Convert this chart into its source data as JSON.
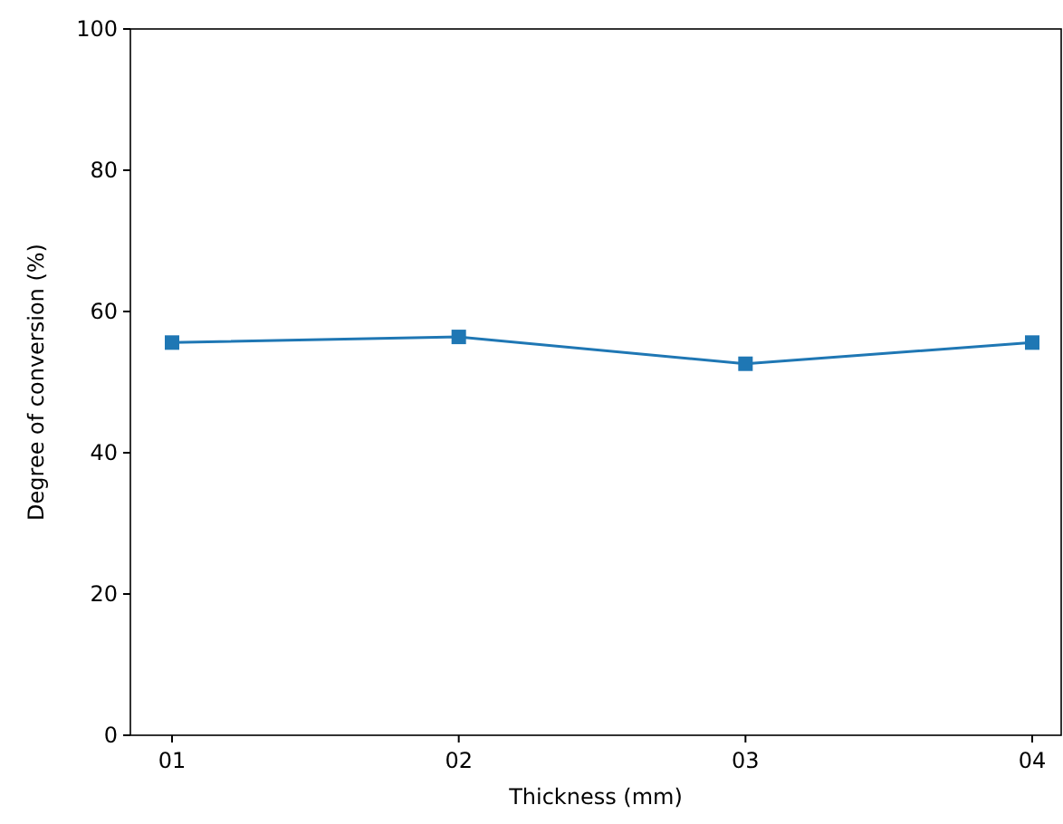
{
  "chart_data": {
    "type": "line",
    "xlabel": "Thickness (mm)",
    "ylabel": "Degree of conversion (%)",
    "categories": [
      "01",
      "02",
      "03",
      "04"
    ],
    "series": [
      {
        "color": "#1f77b4",
        "values": [
          55.6,
          56.4,
          52.6,
          55.6
        ]
      }
    ],
    "ylim": [
      0,
      100
    ],
    "yticks": [
      0,
      20,
      40,
      60,
      80,
      100
    ],
    "marker": "square",
    "line_style": "solid"
  }
}
